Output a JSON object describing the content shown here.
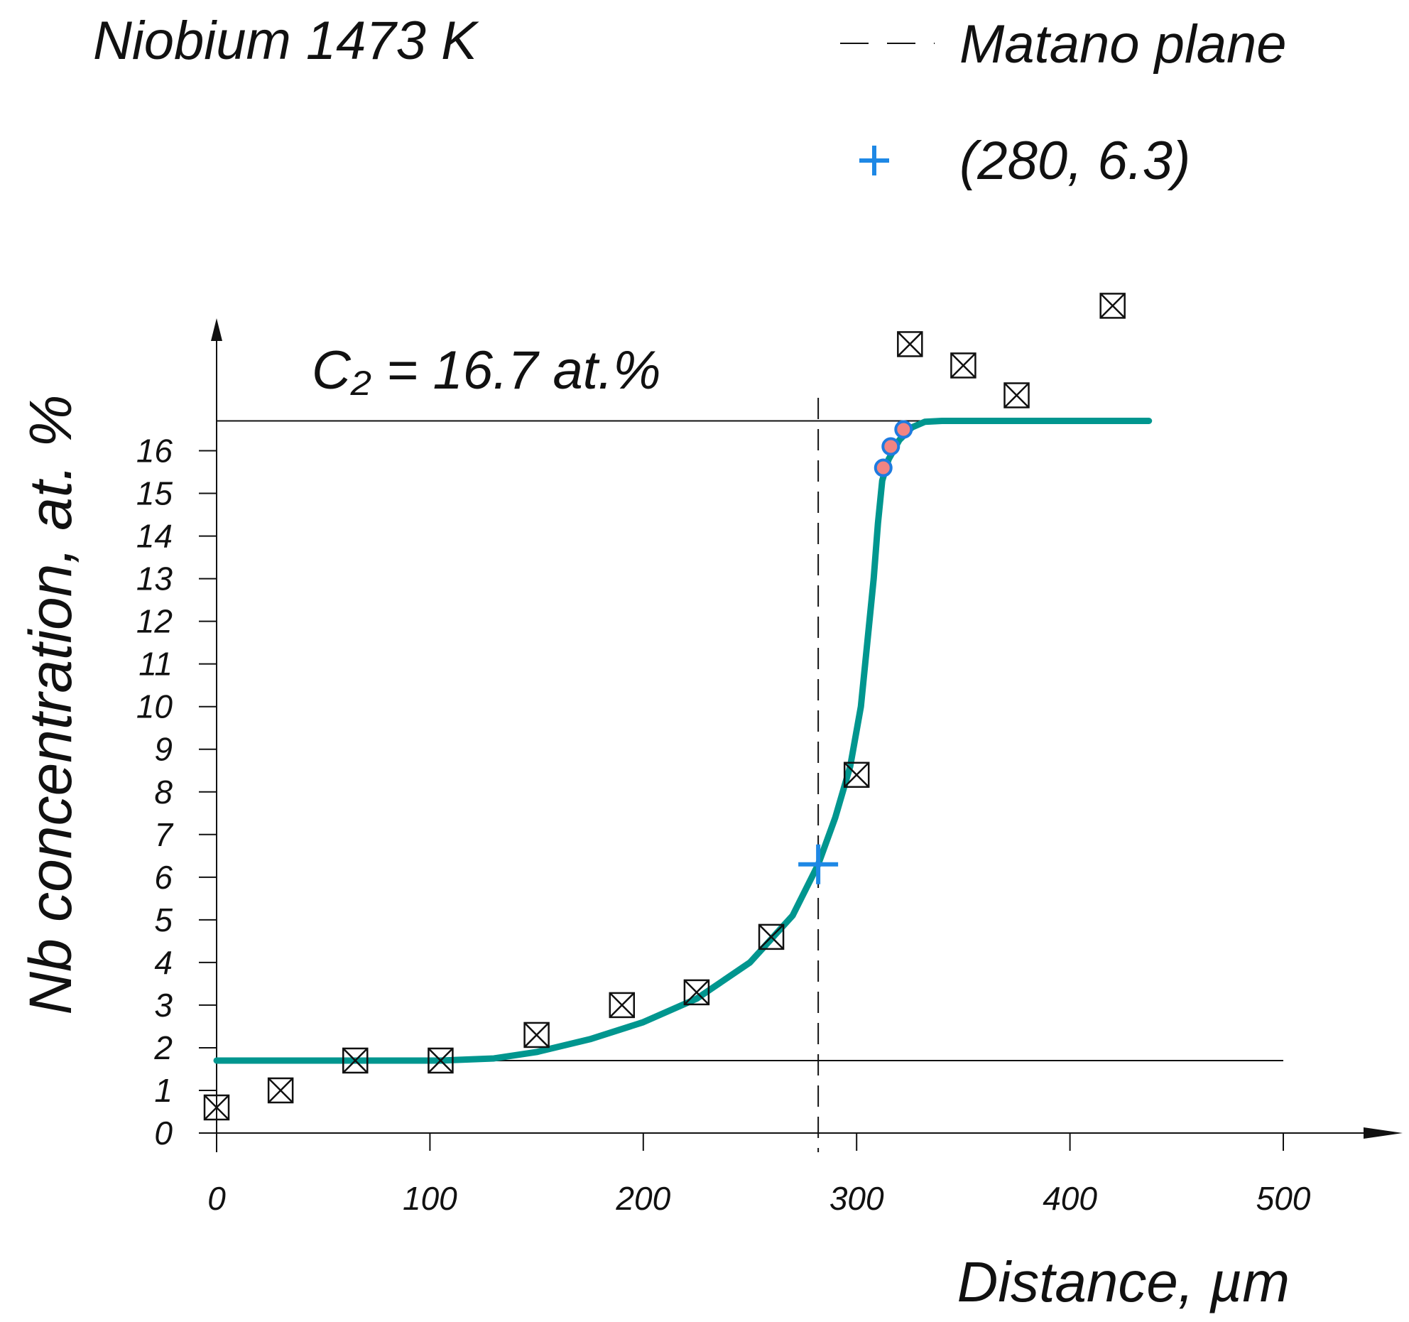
{
  "chart_data": {
    "type": "line",
    "title": "Niobium 1473 K",
    "x_label": "Distance, µm",
    "y_label": "Nb concentration, at. %",
    "annotation": "C₂ = 16.7 at.%",
    "xlim": [
      0,
      555
    ],
    "ylim": [
      0,
      19.1
    ],
    "xticks": [
      0,
      100,
      200,
      300,
      400,
      500
    ],
    "yticks": [
      0,
      1,
      2,
      3,
      4,
      5,
      6,
      7,
      8,
      9,
      10,
      11,
      12,
      13,
      14,
      15,
      16
    ],
    "series": [
      {
        "kind": "line",
        "color": "#00968f",
        "x": [
          0,
          105,
          130,
          150,
          175,
          200,
          225,
          250,
          270,
          282,
          290,
          297,
          302,
          305,
          308,
          310,
          312,
          315,
          320,
          326,
          332,
          340,
          437
        ],
        "values": [
          1.7,
          1.7,
          1.75,
          1.9,
          2.2,
          2.6,
          3.15,
          4.0,
          5.1,
          6.3,
          7.4,
          8.6,
          10.0,
          11.5,
          13.0,
          14.3,
          15.3,
          15.8,
          16.25,
          16.55,
          16.68,
          16.7,
          16.7
        ]
      },
      {
        "kind": "boxed-x",
        "color": "#111111",
        "x": [
          0,
          30,
          65,
          105,
          150,
          190,
          225,
          260,
          300,
          325,
          350,
          375,
          420
        ],
        "values": [
          0.6,
          1.0,
          1.7,
          1.7,
          2.3,
          3.0,
          3.3,
          4.6,
          8.4,
          18.5,
          18.0,
          17.3,
          19.4
        ]
      },
      {
        "kind": "dot",
        "color": "#f28482",
        "edge": "#1e7be0",
        "x": [
          312.5,
          316,
          322
        ],
        "values": [
          15.6,
          16.1,
          16.5
        ]
      },
      {
        "kind": "cross",
        "name": "(280, 6.3)",
        "color": "#1e88e5",
        "x": [
          282
        ],
        "values": [
          6.3
        ]
      }
    ],
    "matano_plane": {
      "name": "Matano plane",
      "x": 282
    },
    "reference_lines": [
      {
        "y": 16.7,
        "x": [
          0,
          334
        ]
      },
      {
        "y": 1.7,
        "x": [
          0,
          500
        ]
      }
    ]
  }
}
